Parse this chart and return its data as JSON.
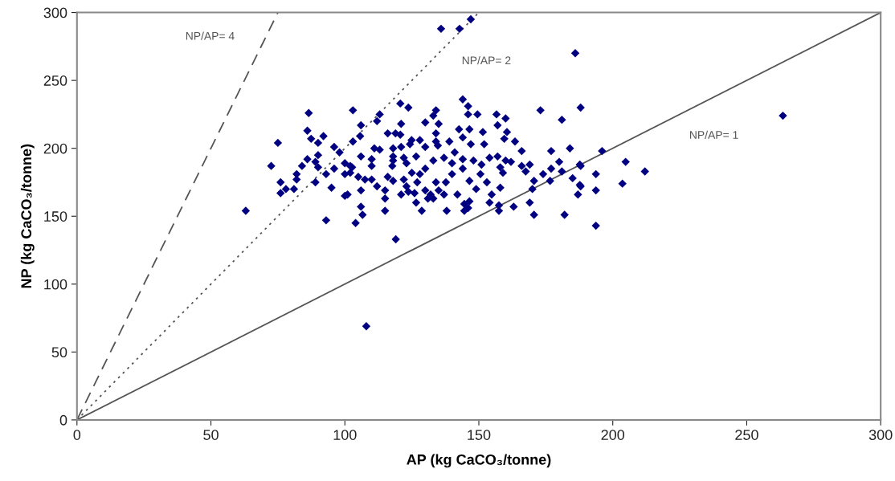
{
  "chart_data": {
    "type": "scatter",
    "xlabel": "AP (kg CaCO₃/tonne)",
    "ylabel": "NP (kg CaCO₃/tonne)",
    "xlim": [
      0,
      300
    ],
    "ylim": [
      0,
      300
    ],
    "xticks": [
      0,
      50,
      100,
      150,
      200,
      250,
      300
    ],
    "yticks": [
      0,
      50,
      100,
      150,
      200,
      250,
      300
    ],
    "grid": false,
    "legend": false,
    "series": [
      {
        "type": "line",
        "name": "NP/AP= 4",
        "color": "#555555",
        "line_style": "dashed",
        "marker": "none",
        "x": [
          0,
          75
        ],
        "values": [
          0,
          300
        ]
      },
      {
        "type": "line",
        "name": "NP/AP= 2",
        "color": "#555555",
        "line_style": "dotted",
        "marker": "none",
        "x": [
          0,
          150
        ],
        "values": [
          0,
          300
        ]
      },
      {
        "type": "line",
        "name": "NP/AP= 1",
        "color": "#555555",
        "line_style": "solid",
        "marker": "none",
        "x": [
          0,
          300
        ],
        "values": [
          0,
          300
        ]
      },
      {
        "color": "#000080",
        "marker": "diamond",
        "x": [
          63,
          86.5,
          86,
          87.4,
          92,
          90,
          75,
          72.5,
          86,
          84,
          90,
          89,
          90,
          82,
          82,
          76,
          78,
          76,
          81,
          89,
          95,
          100,
          93,
          96,
          98,
          96,
          100,
          93,
          103,
          103,
          102,
          120.7,
          123.7,
          113,
          112,
          106,
          121,
          134,
          133,
          130,
          135,
          144,
          146,
          146,
          149.5,
          156.6,
          160,
          157,
          173,
          188,
          181,
          116,
          120.7,
          118.9,
          105.7,
          142.6,
          146.5,
          151.5,
          160.5,
          159.5,
          163.5,
          134,
          134,
          144,
          124.9,
          124.3,
          128,
          111,
          113,
          118,
          121,
          130,
          134.7,
          139,
          147,
          152,
          166,
          177,
          184,
          106,
          118,
          122,
          126.6,
          141,
          144,
          154,
          157,
          160,
          100,
          110,
          102.7,
          110,
          118,
          117.7,
          123,
          130,
          133,
          137,
          140,
          144,
          148,
          151,
          158,
          162,
          166,
          169,
          167.5,
          180,
          177,
          188,
          174,
          181,
          185,
          188,
          187,
          176.6,
          170.6,
          170,
          163,
          169,
          170.6,
          182,
          157.5,
          157.5,
          154,
          154.8,
          158,
          159,
          153,
          149,
          150.6,
          146.5,
          146.5,
          144.6,
          146,
          144.6,
          138,
          142,
          140,
          137.7,
          134,
          135,
          132,
          131,
          130,
          133,
          137,
          128.7,
          126.6,
          126,
          123.7,
          121,
          127,
          128,
          125,
          122,
          123,
          118,
          116,
          115,
          115,
          115,
          112,
          110,
          107.5,
          105,
          106,
          106,
          106.6,
          104,
          101,
          102,
          119,
          186,
          263.5,
          196,
          187.7,
          204.8,
          212,
          193.7,
          187.7,
          203.6,
          193.7,
          193.7,
          135.9,
          142.8,
          147,
          108
        ],
        "values": [
          154,
          226,
          213,
          207,
          209,
          204,
          204,
          187,
          192,
          187,
          195,
          190,
          186,
          181,
          177,
          175,
          170,
          167,
          170,
          175,
          171,
          165,
          147,
          201,
          197,
          185,
          181,
          181,
          228,
          205,
          187,
          233,
          230,
          225,
          220,
          217,
          218,
          228,
          224,
          219,
          218,
          236,
          231,
          225,
          225,
          225,
          222,
          217,
          228,
          230,
          221,
          211,
          210,
          211,
          209,
          214,
          214,
          212,
          212,
          207,
          205,
          211,
          205,
          208,
          206,
          203,
          206,
          200,
          199,
          200,
          201,
          201,
          202,
          205,
          203,
          203,
          198,
          198,
          200,
          194,
          194,
          193,
          194,
          197,
          192,
          193,
          194,
          191,
          189,
          192,
          186,
          187,
          191,
          187,
          189,
          185,
          191,
          193,
          189,
          185,
          191,
          188,
          186,
          190,
          187,
          188,
          183,
          190,
          185,
          187,
          181,
          183,
          178,
          172,
          166,
          176,
          176,
          170,
          157,
          160,
          151,
          151,
          158,
          154,
          160,
          166,
          171,
          182,
          175,
          170,
          181,
          176,
          161,
          159,
          156,
          154,
          154,
          166,
          181,
          175,
          175,
          169,
          166,
          163,
          169,
          163,
          166,
          154,
          160,
          167,
          168,
          166,
          175,
          181,
          182,
          177,
          172,
          176,
          179,
          169,
          163,
          154,
          172,
          177,
          177,
          179,
          169,
          157,
          151,
          145,
          166,
          182,
          133,
          270,
          224,
          198,
          188,
          190,
          183,
          181,
          173,
          174,
          169,
          143,
          288,
          288,
          295,
          69
        ]
      }
    ]
  }
}
